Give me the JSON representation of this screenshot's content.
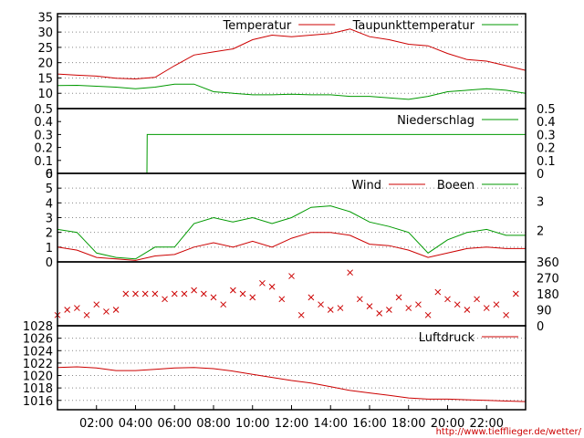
{
  "credit": "http://www.tiefflieger.de/wetter/",
  "colors": {
    "red": "#cc0000",
    "green": "#009900",
    "grid": "#888888",
    "axis": "#000000"
  },
  "chart_data": [
    {
      "type": "line",
      "title": "",
      "ylim": [
        5,
        36
      ],
      "y_ticks": [
        "35",
        "30",
        "25",
        "20",
        "15",
        "10"
      ],
      "grid": true,
      "legend_position": "top-right",
      "x": [
        "00:00",
        "01:00",
        "02:00",
        "03:00",
        "04:00",
        "05:00",
        "06:00",
        "07:00",
        "08:00",
        "09:00",
        "10:00",
        "11:00",
        "12:00",
        "13:00",
        "14:00",
        "15:00",
        "16:00",
        "17:00",
        "18:00",
        "19:00",
        "20:00",
        "21:00",
        "22:00",
        "23:00",
        "24:00"
      ],
      "series": [
        {
          "name": "Temperatur",
          "color": "#cc0000",
          "values": [
            16.3,
            15.9,
            15.6,
            14.9,
            14.7,
            15.2,
            19,
            22.5,
            23.5,
            24.5,
            27.5,
            29,
            28.5,
            29,
            29.5,
            31,
            28.5,
            27.5,
            26,
            25.5,
            23,
            21,
            20.5,
            19,
            17.5
          ]
        },
        {
          "name": "Taupunkttemperatur",
          "color": "#009900",
          "values": [
            12.5,
            12.6,
            12.3,
            12,
            11.5,
            12,
            13,
            13,
            10.5,
            10,
            9.5,
            9.5,
            9.7,
            9.5,
            9.5,
            9,
            9,
            8.5,
            8,
            9,
            10.5,
            11,
            11.5,
            11,
            10
          ]
        }
      ]
    },
    {
      "type": "line",
      "ylim": [
        0,
        0.5
      ],
      "y_ticks": [
        "0.5",
        "0.4",
        "0.3",
        "0.2",
        "0.1",
        "0"
      ],
      "legend_position": "top-right",
      "x": [
        "00:00",
        "04:35",
        "04:36",
        "24:00"
      ],
      "series": [
        {
          "name": "Niederschlag",
          "color": "#009900",
          "values": [
            0,
            0,
            0.3,
            0.3
          ]
        }
      ]
    },
    {
      "type": "line",
      "ylim": [
        0,
        6
      ],
      "y_ticks": [
        "6",
        "5",
        "4",
        "3",
        "2",
        "1",
        "0"
      ],
      "right_ticks": [
        "3",
        "2"
      ],
      "grid": true,
      "legend_position": "top-right",
      "x": [
        "00:00",
        "01:00",
        "02:00",
        "03:00",
        "04:00",
        "05:00",
        "06:00",
        "07:00",
        "08:00",
        "09:00",
        "10:00",
        "11:00",
        "12:00",
        "13:00",
        "14:00",
        "15:00",
        "16:00",
        "17:00",
        "18:00",
        "19:00",
        "20:00",
        "21:00",
        "22:00",
        "23:00",
        "24:00"
      ],
      "series": [
        {
          "name": "Wind",
          "color": "#cc0000",
          "values": [
            1,
            0.8,
            0.3,
            0.2,
            0.1,
            0.4,
            0.5,
            1,
            1.3,
            1,
            1.4,
            1,
            1.6,
            2,
            2,
            1.8,
            1.2,
            1.1,
            0.8,
            0.3,
            0.6,
            0.9,
            1,
            0.9,
            0.9
          ]
        },
        {
          "name": "Boeen",
          "color": "#009900",
          "values": [
            2.2,
            2,
            0.6,
            0.3,
            0.2,
            1,
            1,
            2.6,
            3,
            2.7,
            3,
            2.6,
            3,
            3.7,
            3.8,
            3.4,
            2.7,
            2.4,
            2,
            0.6,
            1.5,
            2,
            2.2,
            1.8,
            1.8
          ]
        }
      ]
    },
    {
      "type": "scatter",
      "ylim": [
        0,
        360
      ],
      "right_ticks": [
        "360",
        "270",
        "180",
        "90",
        "0"
      ],
      "x": [
        "00:00",
        "00:30",
        "01:00",
        "01:30",
        "02:00",
        "02:30",
        "03:00",
        "03:30",
        "04:00",
        "04:30",
        "05:00",
        "05:30",
        "06:00",
        "06:30",
        "07:00",
        "07:30",
        "08:00",
        "08:30",
        "09:00",
        "09:30",
        "10:00",
        "10:30",
        "11:00",
        "11:30",
        "12:00",
        "12:30",
        "13:00",
        "13:30",
        "14:00",
        "14:30",
        "15:00",
        "15:30",
        "16:00",
        "16:30",
        "17:00",
        "17:30",
        "18:00",
        "18:30",
        "19:00",
        "19:30",
        "20:00",
        "20:30",
        "21:00",
        "21:30",
        "22:00",
        "22:30",
        "23:00",
        "23:30"
      ],
      "series": [
        {
          "name": "",
          "color": "#cc0000",
          "values": [
            60,
            90,
            100,
            60,
            120,
            80,
            90,
            180,
            180,
            180,
            180,
            150,
            180,
            180,
            200,
            180,
            160,
            120,
            200,
            180,
            160,
            240,
            220,
            150,
            280,
            60,
            160,
            120,
            90,
            100,
            300,
            150,
            110,
            70,
            90,
            160,
            100,
            120,
            60,
            190,
            150,
            120,
            90,
            150,
            100,
            120,
            60,
            180
          ]
        }
      ]
    },
    {
      "type": "line",
      "ylim": [
        1014.5,
        1028
      ],
      "y_ticks": [
        "1028",
        "1026",
        "1024",
        "1022",
        "1020",
        "1018",
        "1016"
      ],
      "x_ticks": [
        "02:00",
        "04:00",
        "06:00",
        "08:00",
        "10:00",
        "12:00",
        "14:00",
        "16:00",
        "18:00",
        "20:00",
        "22:00"
      ],
      "grid": true,
      "legend_position": "top-right",
      "x": [
        "00:00",
        "01:00",
        "02:00",
        "03:00",
        "04:00",
        "05:00",
        "06:00",
        "07:00",
        "08:00",
        "09:00",
        "10:00",
        "11:00",
        "12:00",
        "13:00",
        "14:00",
        "15:00",
        "16:00",
        "17:00",
        "18:00",
        "19:00",
        "20:00",
        "21:00",
        "22:00",
        "23:00",
        "24:00"
      ],
      "series": [
        {
          "name": "Luftdruck",
          "color": "#cc0000",
          "values": [
            1021.3,
            1021.4,
            1021.2,
            1020.8,
            1020.8,
            1021,
            1021.2,
            1021.3,
            1021.1,
            1020.7,
            1020.2,
            1019.7,
            1019.2,
            1018.8,
            1018.2,
            1017.6,
            1017.2,
            1016.8,
            1016.4,
            1016.2,
            1016.2,
            1016.1,
            1016,
            1015.9,
            1015.8
          ]
        }
      ]
    }
  ]
}
